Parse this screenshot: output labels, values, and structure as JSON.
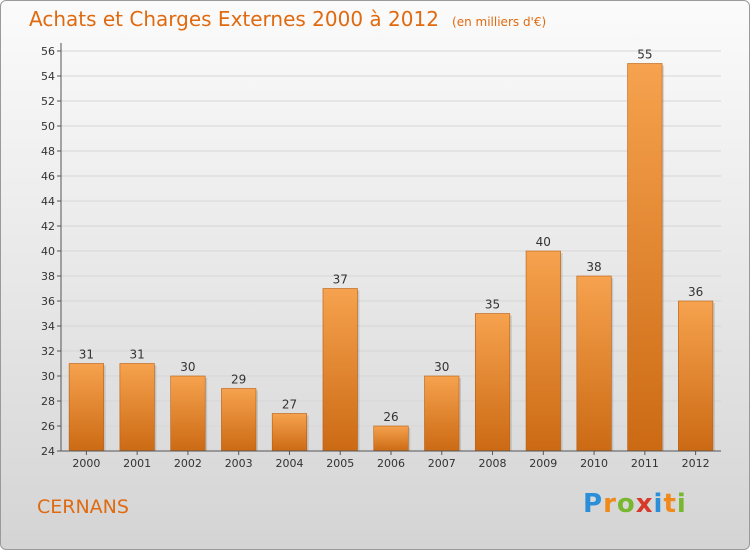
{
  "title": "Achats et Charges Externes 2000 à 2012",
  "subtitle": "(en milliers d'€)",
  "commune": "CERNANS",
  "logo": {
    "letters": [
      "P",
      "r",
      "o",
      "x",
      "i",
      "t",
      "i"
    ],
    "colors": [
      "#2a8fd8",
      "#f08a1c",
      "#7ab730",
      "#d83a2a",
      "#2a8fd8",
      "#f08a1c",
      "#7ab730"
    ]
  },
  "colors": {
    "bar_top": "#f6a24e",
    "bar_bottom": "#cc6a14",
    "accent": "#e06a10"
  },
  "chart_data": {
    "type": "bar",
    "categories": [
      "2000",
      "2001",
      "2002",
      "2003",
      "2004",
      "2005",
      "2006",
      "2007",
      "2008",
      "2009",
      "2010",
      "2011",
      "2012"
    ],
    "values": [
      31,
      31,
      30,
      29,
      27,
      37,
      26,
      30,
      35,
      40,
      38,
      55,
      36
    ],
    "yticks": [
      24,
      26,
      28,
      30,
      32,
      34,
      36,
      38,
      40,
      42,
      44,
      46,
      48,
      50,
      52,
      54,
      56
    ],
    "ylim": [
      24,
      56
    ],
    "grid": true,
    "data_labels": true
  }
}
